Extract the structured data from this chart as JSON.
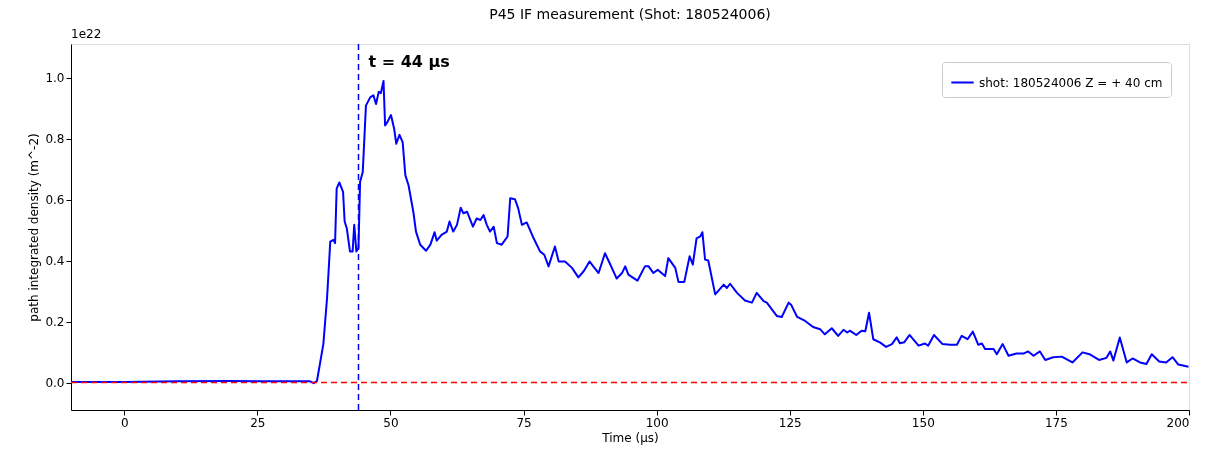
{
  "chart_data": {
    "type": "line",
    "title": "P45 IF measurement (Shot: 180524006)",
    "xlabel": "Time (µs)",
    "ylabel": "path integrated density (m^-2)",
    "xlim": [
      -10,
      200
    ],
    "ylim": [
      -0.09,
      1.11
    ],
    "xticks": [
      0,
      25,
      50,
      75,
      100,
      125,
      150,
      175,
      200
    ],
    "yticks": [
      {
        "value": 0,
        "label": "0.0"
      },
      0.2,
      0.4,
      0.6,
      0.8,
      {
        "value": 1,
        "label": "1.0"
      }
    ],
    "grid": false,
    "legend": "top right",
    "line_style": "solid",
    "marker": "none",
    "annotations": [
      "1e22"
    ],
    "ref_lines": [
      {
        "axis": "y",
        "value": 0,
        "color": "#ff0000",
        "line_style": "dashed"
      },
      {
        "axis": "x",
        "value": 44,
        "label": "t = 44  µs",
        "color": "#0000ff",
        "line_style": "dashed"
      }
    ],
    "series": [
      {
        "name": "shot: 180524006 Z = + 40 cm",
        "color": "#0000ff",
        "x": [
          -10,
          0,
          10,
          20,
          31.2,
          34.9,
          35.6,
          36.2,
          37.4,
          38.1,
          38.7,
          39.3,
          39.6,
          39.9,
          40.4,
          41.1,
          41.4,
          41.8,
          42.4,
          42.9,
          43.2,
          43.6,
          44.0,
          44.3,
          44.8,
          45.4,
          46.2,
          46.8,
          47.3,
          47.8,
          48.2,
          48.7,
          49.0,
          49.4,
          50.1,
          50.7,
          51.1,
          51.7,
          52.3,
          52.8,
          53.4,
          54.3,
          54.8,
          55.6,
          56.7,
          57.5,
          58.3,
          58.7,
          59.6,
          60.6,
          61.1,
          61.8,
          62.5,
          63.2,
          63.7,
          64.4,
          65.0,
          65.5,
          66.2,
          66.9,
          67.5,
          68.1,
          68.7,
          69.4,
          70.0,
          70.9,
          72.0,
          72.5,
          73.4,
          74.0,
          74.7,
          75.6,
          76.9,
          78.1,
          78.9,
          79.7,
          80.9,
          81.6,
          82.8,
          84.1,
          85.3,
          86.3,
          87.4,
          88.1,
          89.1,
          90.3,
          91.3,
          92.5,
          93.5,
          94.1,
          94.7,
          96.4,
          97.8,
          98.5,
          99.4,
          100.2,
          101.6,
          102.2,
          103.5,
          104.1,
          105.2,
          106.2,
          106.8,
          107.5,
          108.2,
          108.6,
          109.1,
          109.7,
          111.0,
          112.6,
          113.2,
          113.8,
          115.1,
          116.6,
          117.9,
          118.8,
          120.1,
          120.7,
          122.6,
          123.5,
          124.8,
          125.3,
          126.4,
          127.9,
          129.4,
          130.7,
          131.6,
          132.9,
          134.1,
          135.1,
          135.8,
          136.3,
          137.5,
          138.5,
          139.2,
          139.9,
          140.7,
          142.0,
          143.1,
          144.2,
          145.1,
          145.7,
          146.5,
          147.5,
          149.2,
          150.4,
          151.0,
          152.1,
          153.7,
          155.1,
          156.4,
          157.3,
          158.4,
          159.4,
          160.4,
          161.1,
          161.7,
          163.3,
          163.9,
          165.0,
          166.1,
          167.6,
          168.9,
          169.8,
          170.8,
          172.0,
          173.0,
          174.5,
          176.1,
          178.1,
          180.0,
          181.3,
          183.1,
          184.5,
          185.2,
          185.8,
          187.0,
          188.3,
          189.4,
          190.8,
          192.0,
          193.0,
          194.4,
          195.7,
          196.9,
          198.0,
          199.9
        ],
        "values": [
          0.002,
          0.002,
          0.004,
          0.005,
          0.004,
          0.004,
          -0.002,
          0.005,
          0.126,
          0.278,
          0.462,
          0.468,
          0.457,
          0.636,
          0.656,
          0.625,
          0.528,
          0.506,
          0.43,
          0.43,
          0.517,
          0.43,
          0.441,
          0.658,
          0.69,
          0.908,
          0.935,
          0.942,
          0.913,
          0.953,
          0.949,
          0.989,
          0.843,
          0.853,
          0.877,
          0.832,
          0.783,
          0.812,
          0.788,
          0.68,
          0.647,
          0.56,
          0.495,
          0.452,
          0.432,
          0.452,
          0.493,
          0.465,
          0.484,
          0.495,
          0.528,
          0.495,
          0.517,
          0.573,
          0.555,
          0.56,
          0.533,
          0.511,
          0.538,
          0.533,
          0.549,
          0.517,
          0.495,
          0.511,
          0.457,
          0.452,
          0.479,
          0.604,
          0.601,
          0.571,
          0.517,
          0.525,
          0.473,
          0.43,
          0.419,
          0.381,
          0.446,
          0.397,
          0.397,
          0.376,
          0.345,
          0.365,
          0.397,
          0.381,
          0.359,
          0.424,
          0.387,
          0.341,
          0.359,
          0.381,
          0.354,
          0.334,
          0.381,
          0.381,
          0.359,
          0.37,
          0.349,
          0.408,
          0.376,
          0.33,
          0.33,
          0.414,
          0.387,
          0.473,
          0.479,
          0.493,
          0.403,
          0.4,
          0.289,
          0.321,
          0.31,
          0.324,
          0.294,
          0.269,
          0.262,
          0.294,
          0.267,
          0.262,
          0.218,
          0.215,
          0.262,
          0.254,
          0.215,
          0.202,
          0.182,
          0.175,
          0.158,
          0.178,
          0.153,
          0.173,
          0.164,
          0.17,
          0.156,
          0.17,
          0.168,
          0.229,
          0.142,
          0.131,
          0.117,
          0.126,
          0.148,
          0.129,
          0.132,
          0.156,
          0.121,
          0.128,
          0.121,
          0.156,
          0.126,
          0.124,
          0.124,
          0.153,
          0.142,
          0.167,
          0.124,
          0.128,
          0.11,
          0.11,
          0.093,
          0.126,
          0.088,
          0.095,
          0.095,
          0.102,
          0.088,
          0.102,
          0.074,
          0.083,
          0.085,
          0.066,
          0.099,
          0.093,
          0.074,
          0.081,
          0.102,
          0.072,
          0.148,
          0.066,
          0.079,
          0.066,
          0.061,
          0.093,
          0.069,
          0.066,
          0.083,
          0.059,
          0.052
        ]
      }
    ]
  }
}
